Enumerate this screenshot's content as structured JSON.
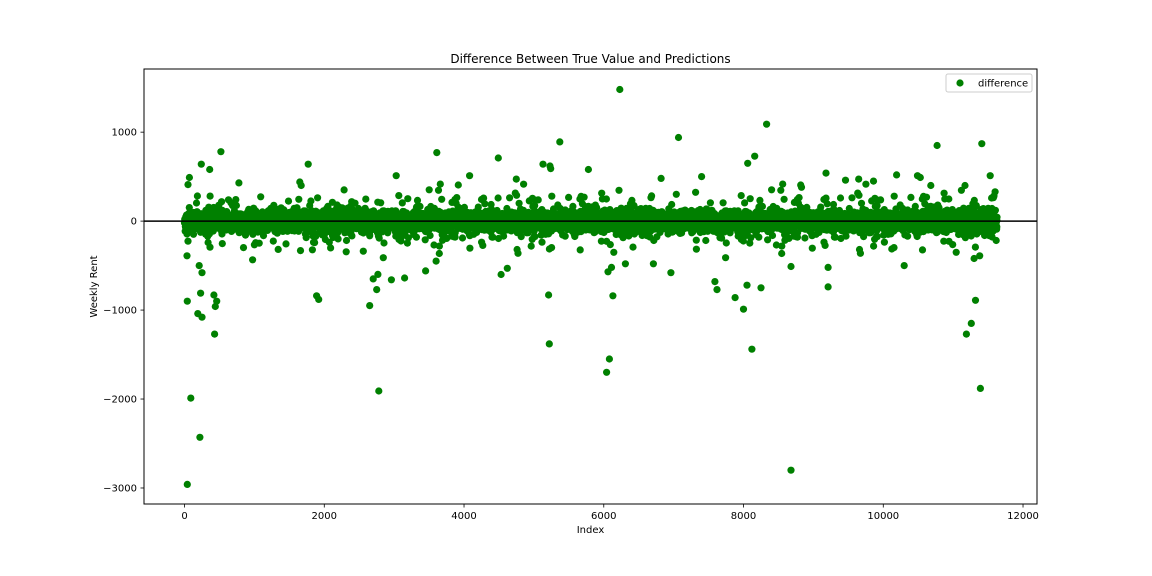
{
  "chart_data": {
    "type": "scatter",
    "title": "Difference Between True Value and Predictions",
    "xlabel": "Index",
    "ylabel": "Weekly Rent",
    "xlim": [
      -580,
      12200
    ],
    "ylim": [
      -3180,
      1710
    ],
    "x_ticks": [
      0,
      2000,
      4000,
      6000,
      8000,
      10000,
      12000
    ],
    "x_tick_labels": [
      "0",
      "2000",
      "4000",
      "6000",
      "8000",
      "10000",
      "12000"
    ],
    "y_ticks": [
      1000,
      0,
      -1000,
      -2000,
      -3000
    ],
    "y_tick_labels": [
      "1000",
      "0",
      "−1000",
      "−2000",
      "−3000"
    ],
    "grid": false,
    "legend_position": "top-right",
    "reference_line": 0,
    "n_points": 11630,
    "series": [
      {
        "name": "difference",
        "color": "#008000",
        "outliers": [
          {
            "x": 40,
            "y": -2960
          },
          {
            "x": 90,
            "y": -1990
          },
          {
            "x": 220,
            "y": -2430
          },
          {
            "x": 40,
            "y": -900
          },
          {
            "x": 35,
            "y": -390
          },
          {
            "x": 230,
            "y": -810
          },
          {
            "x": 190,
            "y": -1040
          },
          {
            "x": 250,
            "y": -1080
          },
          {
            "x": 430,
            "y": -1270
          },
          {
            "x": 420,
            "y": -830
          },
          {
            "x": 440,
            "y": -960
          },
          {
            "x": 460,
            "y": -900
          },
          {
            "x": 210,
            "y": -500
          },
          {
            "x": 250,
            "y": -580
          },
          {
            "x": 240,
            "y": 640
          },
          {
            "x": 360,
            "y": 580
          },
          {
            "x": 520,
            "y": 780
          },
          {
            "x": 50,
            "y": 410
          },
          {
            "x": 70,
            "y": 490
          },
          {
            "x": 1770,
            "y": 640
          },
          {
            "x": 1650,
            "y": 440
          },
          {
            "x": 1670,
            "y": 400
          },
          {
            "x": 1890,
            "y": -840
          },
          {
            "x": 1920,
            "y": -880
          },
          {
            "x": 2650,
            "y": -950
          },
          {
            "x": 2700,
            "y": -650
          },
          {
            "x": 2750,
            "y": -770
          },
          {
            "x": 2780,
            "y": -1910
          },
          {
            "x": 2960,
            "y": -660
          },
          {
            "x": 3150,
            "y": -640
          },
          {
            "x": 3030,
            "y": 510
          },
          {
            "x": 3610,
            "y": 770
          },
          {
            "x": 3450,
            "y": -560
          },
          {
            "x": 3600,
            "y": -450
          },
          {
            "x": 4490,
            "y": 710
          },
          {
            "x": 4530,
            "y": -600
          },
          {
            "x": 4620,
            "y": -530
          },
          {
            "x": 4080,
            "y": 510
          },
          {
            "x": 5210,
            "y": -830
          },
          {
            "x": 5220,
            "y": -1380
          },
          {
            "x": 5370,
            "y": 890
          },
          {
            "x": 5130,
            "y": 640
          },
          {
            "x": 5230,
            "y": 620
          },
          {
            "x": 5240,
            "y": 590
          },
          {
            "x": 5780,
            "y": 580
          },
          {
            "x": 6040,
            "y": -1700
          },
          {
            "x": 6080,
            "y": -1550
          },
          {
            "x": 6130,
            "y": -840
          },
          {
            "x": 6060,
            "y": -570
          },
          {
            "x": 6110,
            "y": -520
          },
          {
            "x": 6230,
            "y": 1480
          },
          {
            "x": 6310,
            "y": -480
          },
          {
            "x": 6710,
            "y": -480
          },
          {
            "x": 6960,
            "y": -580
          },
          {
            "x": 7070,
            "y": 940
          },
          {
            "x": 6820,
            "y": 480
          },
          {
            "x": 7400,
            "y": 500
          },
          {
            "x": 7590,
            "y": -680
          },
          {
            "x": 7620,
            "y": -770
          },
          {
            "x": 7880,
            "y": -860
          },
          {
            "x": 8000,
            "y": -990
          },
          {
            "x": 8050,
            "y": -720
          },
          {
            "x": 8120,
            "y": -1440
          },
          {
            "x": 8250,
            "y": -750
          },
          {
            "x": 8060,
            "y": 650
          },
          {
            "x": 8160,
            "y": 730
          },
          {
            "x": 8330,
            "y": 1090
          },
          {
            "x": 8680,
            "y": -2800
          },
          {
            "x": 8680,
            "y": -510
          },
          {
            "x": 8830,
            "y": 380
          },
          {
            "x": 9210,
            "y": -740
          },
          {
            "x": 9210,
            "y": -520
          },
          {
            "x": 9180,
            "y": 540
          },
          {
            "x": 9460,
            "y": 460
          },
          {
            "x": 9860,
            "y": 450
          },
          {
            "x": 10190,
            "y": 520
          },
          {
            "x": 10300,
            "y": -500
          },
          {
            "x": 10490,
            "y": 510
          },
          {
            "x": 10530,
            "y": 490
          },
          {
            "x": 10770,
            "y": 850
          },
          {
            "x": 10680,
            "y": 400
          },
          {
            "x": 11190,
            "y": -1270
          },
          {
            "x": 11260,
            "y": -1150
          },
          {
            "x": 11320,
            "y": -890
          },
          {
            "x": 11390,
            "y": -1880
          },
          {
            "x": 11410,
            "y": 870
          },
          {
            "x": 11530,
            "y": 510
          },
          {
            "x": 11170,
            "y": 400
          },
          {
            "x": 11300,
            "y": -420
          },
          {
            "x": 11380,
            "y": -390
          },
          {
            "x": 11600,
            "y": 330
          },
          {
            "x": 11550,
            "y": 260
          }
        ]
      }
    ]
  }
}
